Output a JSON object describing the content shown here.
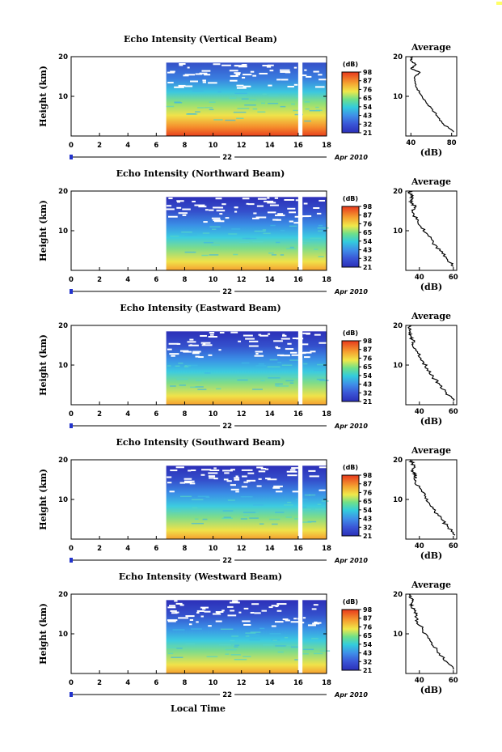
{
  "xlabel": "Local Time",
  "x_ticks": [
    "0",
    "2",
    "4",
    "6",
    "8",
    "10",
    "12",
    "14",
    "16",
    "18"
  ],
  "date_day": "22",
  "date_month_year": "Apr 2010",
  "colorbar_unit": "(dB)",
  "colorbar_ticks": [
    "21",
    "32",
    "43",
    "54",
    "65",
    "76",
    "87",
    "98"
  ],
  "ylabel": "Height (km)",
  "height_ticks": [
    "10",
    "20"
  ],
  "avg_title": "Average",
  "avg_xlabel": "(dB)",
  "colors": {
    "low": "#2b2fb8",
    "mid": "#33ccdd",
    "high": "#e8381c",
    "axis": "#000000",
    "date_marker": "#2233cc"
  },
  "chart_data": [
    {
      "type": "heatmap",
      "title": "Echo Intensity (Vertical Beam)",
      "xlim": [
        0,
        18
      ],
      "ylim": [
        0,
        20
      ],
      "colorbar_range": [
        21,
        98
      ],
      "data_start_hour": 6.7,
      "data_gap_hours": [
        16.0,
        16.3
      ],
      "inset": {
        "type": "line",
        "title": "Average",
        "x_ticks": [
          "40",
          "80"
        ],
        "xlim": [
          35,
          85
        ],
        "profile": [
          [
            1,
            82
          ],
          [
            3,
            72
          ],
          [
            5,
            66
          ],
          [
            7,
            60
          ],
          [
            9,
            54
          ],
          [
            11,
            48
          ],
          [
            13,
            45
          ],
          [
            15,
            44
          ],
          [
            16,
            49
          ],
          [
            17,
            40
          ],
          [
            18,
            45
          ],
          [
            19,
            40
          ],
          [
            20,
            41
          ]
        ]
      }
    },
    {
      "type": "heatmap",
      "title": "Echo Intensity (Northward Beam)",
      "xlim": [
        0,
        18
      ],
      "ylim": [
        0,
        20
      ],
      "colorbar_range": [
        21,
        98
      ],
      "data_start_hour": 6.7,
      "data_gap_hours": [
        16.0,
        16.3
      ],
      "inset": {
        "type": "line",
        "title": "Average",
        "x_ticks": [
          "40",
          "60"
        ],
        "xlim": [
          32,
          62
        ],
        "profile": [
          [
            1,
            60
          ],
          [
            3,
            56
          ],
          [
            5,
            52
          ],
          [
            7,
            48
          ],
          [
            9,
            45
          ],
          [
            11,
            41
          ],
          [
            13,
            38
          ],
          [
            15,
            36
          ],
          [
            16,
            38
          ],
          [
            17,
            35
          ],
          [
            18,
            36
          ],
          [
            19,
            35
          ],
          [
            20,
            34
          ]
        ]
      }
    },
    {
      "type": "heatmap",
      "title": "Echo Intensity (Eastward Beam)",
      "xlim": [
        0,
        18
      ],
      "ylim": [
        0,
        20
      ],
      "colorbar_range": [
        21,
        98
      ],
      "data_start_hour": 6.7,
      "data_gap_hours": [
        16.0,
        16.3
      ],
      "inset": {
        "type": "line",
        "title": "Average",
        "x_ticks": [
          "40",
          "60"
        ],
        "xlim": [
          32,
          62
        ],
        "profile": [
          [
            1,
            60
          ],
          [
            3,
            56
          ],
          [
            5,
            52
          ],
          [
            7,
            48
          ],
          [
            9,
            45
          ],
          [
            11,
            42
          ],
          [
            13,
            39
          ],
          [
            15,
            36
          ],
          [
            16,
            37
          ],
          [
            17,
            35
          ],
          [
            18,
            34
          ],
          [
            19,
            35
          ],
          [
            20,
            34
          ]
        ]
      }
    },
    {
      "type": "heatmap",
      "title": "Echo Intensity (Southward Beam)",
      "xlim": [
        0,
        18
      ],
      "ylim": [
        0,
        20
      ],
      "colorbar_range": [
        21,
        98
      ],
      "data_start_hour": 6.7,
      "data_gap_hours": [
        16.0,
        16.3
      ],
      "inset": {
        "type": "line",
        "title": "Average",
        "x_ticks": [
          "40",
          "60"
        ],
        "xlim": [
          32,
          62
        ],
        "profile": [
          [
            1,
            61
          ],
          [
            3,
            57
          ],
          [
            5,
            53
          ],
          [
            7,
            49
          ],
          [
            9,
            46
          ],
          [
            11,
            43
          ],
          [
            13,
            40
          ],
          [
            15,
            37
          ],
          [
            16,
            38
          ],
          [
            17,
            36
          ],
          [
            18,
            37
          ],
          [
            19,
            36
          ],
          [
            20,
            35
          ]
        ]
      }
    },
    {
      "type": "heatmap",
      "title": "Echo Intensity (Westward Beam)",
      "xlim": [
        0,
        18
      ],
      "ylim": [
        0,
        20
      ],
      "colorbar_range": [
        21,
        98
      ],
      "data_start_hour": 6.7,
      "data_gap_hours": [
        16.0,
        16.3
      ],
      "inset": {
        "type": "line",
        "title": "Average",
        "x_ticks": [
          "40",
          "60"
        ],
        "xlim": [
          32,
          62
        ],
        "profile": [
          [
            1,
            60
          ],
          [
            3,
            56
          ],
          [
            5,
            52
          ],
          [
            7,
            48
          ],
          [
            9,
            45
          ],
          [
            11,
            42
          ],
          [
            13,
            39
          ],
          [
            15,
            38
          ],
          [
            16,
            37
          ],
          [
            17,
            35
          ],
          [
            18,
            36
          ],
          [
            19,
            35
          ],
          [
            20,
            34
          ]
        ]
      }
    }
  ]
}
